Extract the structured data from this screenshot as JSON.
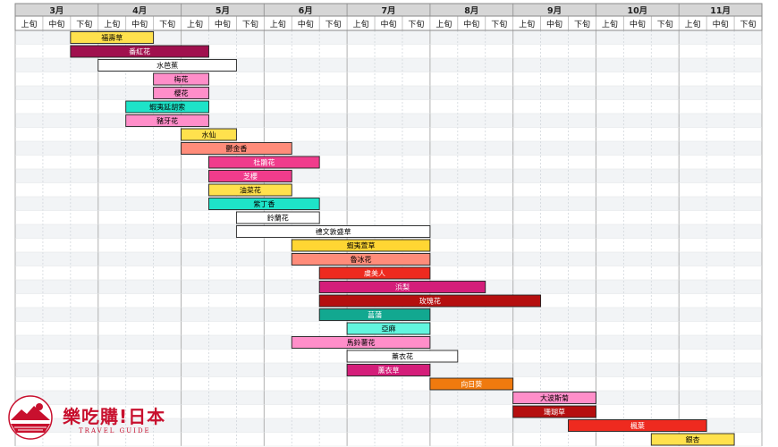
{
  "chart_data": {
    "type": "gantt",
    "months": [
      "3月",
      "4月",
      "5月",
      "6月",
      "7月",
      "8月",
      "9月",
      "10月",
      "11月"
    ],
    "subperiods": [
      "上旬",
      "中旬",
      "下旬"
    ],
    "bars": [
      {
        "label": "福壽草",
        "start": 2,
        "end": 5,
        "color": "#ffe14d",
        "text_color": "#000000"
      },
      {
        "label": "番紅花",
        "start": 2,
        "end": 7,
        "color": "#a0104e",
        "text_color": "#ffffff"
      },
      {
        "label": "水芭蕉",
        "start": 3,
        "end": 8,
        "color": "#ffffff",
        "text_color": "#000000"
      },
      {
        "label": "梅花",
        "start": 5,
        "end": 7,
        "color": "#ff8ec9",
        "text_color": "#000000"
      },
      {
        "label": "櫻花",
        "start": 5,
        "end": 7,
        "color": "#ff8ec9",
        "text_color": "#000000"
      },
      {
        "label": "蝦夷延胡索",
        "start": 4,
        "end": 7,
        "color": "#1ee3c8",
        "text_color": "#000000"
      },
      {
        "label": "豬牙花",
        "start": 4,
        "end": 7,
        "color": "#ff8ec9",
        "text_color": "#000000"
      },
      {
        "label": "水仙",
        "start": 6,
        "end": 8,
        "color": "#ffe14d",
        "text_color": "#000000"
      },
      {
        "label": "鬱金香",
        "start": 6,
        "end": 10,
        "color": "#ff8c7a",
        "text_color": "#000000"
      },
      {
        "label": "杜鵑花",
        "start": 7,
        "end": 11,
        "color": "#f03c8c",
        "text_color": "#ffffff"
      },
      {
        "label": "芝櫻",
        "start": 7,
        "end": 10,
        "color": "#f03c8c",
        "text_color": "#ffffff"
      },
      {
        "label": "油菜花",
        "start": 7,
        "end": 10,
        "color": "#ffe14d",
        "text_color": "#000000"
      },
      {
        "label": "紫丁香",
        "start": 7,
        "end": 11,
        "color": "#1ee3c8",
        "text_color": "#000000"
      },
      {
        "label": "鈴蘭花",
        "start": 8,
        "end": 11,
        "color": "#ffffff",
        "text_color": "#000000"
      },
      {
        "label": "禮文敦盛草",
        "start": 8,
        "end": 15,
        "color": "#ffffff",
        "text_color": "#000000"
      },
      {
        "label": "蝦夷萱草",
        "start": 10,
        "end": 15,
        "color": "#ffd633",
        "text_color": "#000000"
      },
      {
        "label": "魯冰花",
        "start": 10,
        "end": 15,
        "color": "#ff8c7a",
        "text_color": "#000000"
      },
      {
        "label": "虞美人",
        "start": 11,
        "end": 15,
        "color": "#ee2a1f",
        "text_color": "#ffffff"
      },
      {
        "label": "浜梨",
        "start": 11,
        "end": 17,
        "color": "#d41e7a",
        "text_color": "#ffffff"
      },
      {
        "label": "玫瑰花",
        "start": 11,
        "end": 19,
        "color": "#b50f0f",
        "text_color": "#ffffff"
      },
      {
        "label": "菖蒲",
        "start": 11,
        "end": 15,
        "color": "#12a890",
        "text_color": "#ffffff"
      },
      {
        "label": "亞麻",
        "start": 12,
        "end": 15,
        "color": "#62f5de",
        "text_color": "#000000"
      },
      {
        "label": "馬鈴薯花",
        "start": 10,
        "end": 15,
        "color": "#ff8ec9",
        "text_color": "#000000"
      },
      {
        "label": "薰衣花",
        "start": 12,
        "end": 16,
        "color": "#ffffff",
        "text_color": "#000000"
      },
      {
        "label": "薰衣草",
        "start": 12,
        "end": 15,
        "color": "#d41e7a",
        "text_color": "#ffffff"
      },
      {
        "label": "向日葵",
        "start": 15,
        "end": 18,
        "color": "#f07a0e",
        "text_color": "#ffffff"
      },
      {
        "label": "大波斯菊",
        "start": 18,
        "end": 21,
        "color": "#ff8ec9",
        "text_color": "#000000"
      },
      {
        "label": "珊瑚草",
        "start": 18,
        "end": 21,
        "color": "#b50f0f",
        "text_color": "#ffffff"
      },
      {
        "label": "楓葉",
        "start": 20,
        "end": 25,
        "color": "#ee2a1f",
        "text_color": "#ffffff"
      },
      {
        "label": "銀杏",
        "start": 23,
        "end": 26,
        "color": "#ffe14d",
        "text_color": "#000000"
      }
    ]
  },
  "logo": {
    "title": "樂吃購!日本",
    "subtitle": "TRAVEL GUIDE",
    "colors": {
      "brand": "#c8102e"
    }
  }
}
